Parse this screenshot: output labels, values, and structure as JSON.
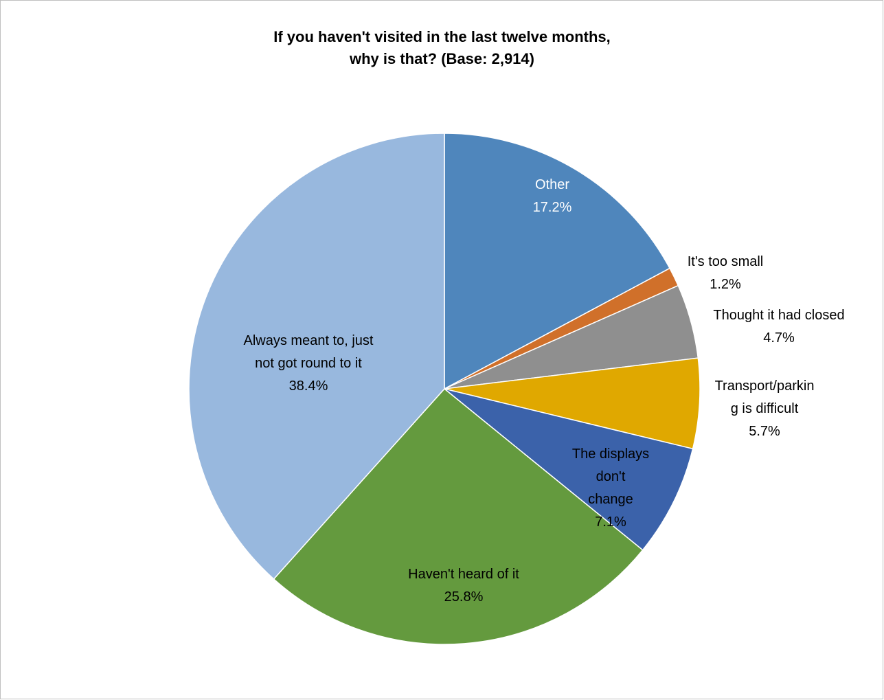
{
  "chart_data": {
    "type": "pie",
    "title_lines": [
      "If you haven't visited in the last twelve months,",
      "why is that? (Base: 2,914)"
    ],
    "slices": [
      {
        "key": "other",
        "label_lines": [
          "Other"
        ],
        "percent_text": "17.2%",
        "value": 17.2,
        "color": "#4f86bc",
        "text_color": "#ffffff"
      },
      {
        "key": "too-small",
        "label_lines": [
          "It's too small"
        ],
        "percent_text": "1.2%",
        "value": 1.2,
        "color": "#d0702a",
        "text_color": "#000000"
      },
      {
        "key": "thought-closed",
        "label_lines": [
          "Thought it had closed"
        ],
        "percent_text": "4.7%",
        "value": 4.7,
        "color": "#8f8f8f",
        "text_color": "#000000"
      },
      {
        "key": "transport-parking",
        "label_lines": [
          "Transport/parkin",
          "g is difficult"
        ],
        "percent_text": "5.7%",
        "value": 5.7,
        "color": "#e0a800",
        "text_color": "#000000"
      },
      {
        "key": "displays-dont-change",
        "label_lines": [
          "The displays",
          "don't",
          "change"
        ],
        "percent_text": "7.1%",
        "value": 7.1,
        "color": "#3b62aa",
        "text_color": "#000000"
      },
      {
        "key": "havent-heard",
        "label_lines": [
          "Haven't heard of it"
        ],
        "percent_text": "25.8%",
        "value": 25.8,
        "color": "#649a3e",
        "text_color": "#000000"
      },
      {
        "key": "always-meant-to",
        "label_lines": [
          "Always meant to, just",
          "not got round to it"
        ],
        "percent_text": "38.4%",
        "value": 38.4,
        "color": "#98b8de",
        "text_color": "#000000"
      }
    ]
  }
}
